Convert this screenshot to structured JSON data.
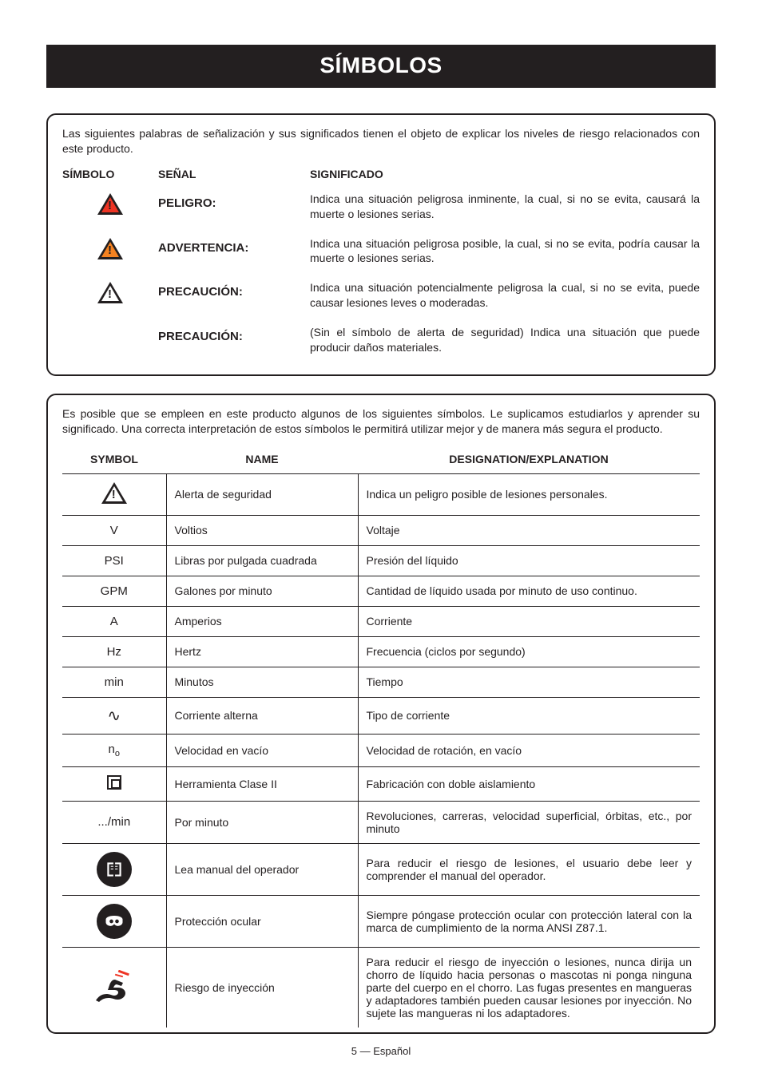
{
  "title": "SÍMBOLOS",
  "signal_box": {
    "intro": "Las siguientes palabras de señalización y sus significados tienen el objeto de explicar los niveles de riesgo relacionados con este producto.",
    "header": {
      "symbol": "SÍMBOLO",
      "signal": "SEÑAL",
      "meaning": "SIGNIFICADO"
    },
    "rows": [
      {
        "icon": "alert-red",
        "signal": "PELIGRO:",
        "meaning": "Indica una situación peligrosa inminente, la cual, si no se evita, causará la muerte o lesiones serias."
      },
      {
        "icon": "alert-orange",
        "signal": "ADVERTENCIA:",
        "meaning": "Indica una situación peligrosa posible, la cual, si no se evita, podría causar la muerte o lesiones serias."
      },
      {
        "icon": "alert-outline",
        "signal": "PRECAUCIÓN:",
        "meaning": "Indica una situación potencialmente peligrosa la cual, si no se evita, puede causar lesiones leves o moderadas."
      },
      {
        "icon": "",
        "signal": "PRECAUCIÓN:",
        "meaning": "(Sin el símbolo de alerta de seguridad) Indica una situación que puede producir daños materiales."
      }
    ]
  },
  "defs_box": {
    "intro": "Es posible que se empleen en este producto algunos de los siguientes símbolos. Le suplicamos estudiarlos y aprender su significado. Una correcta interpretación de estos símbolos le permitirá utilizar mejor y de manera más segura el producto.",
    "header": {
      "symbol": "SYMBOL",
      "name": "NAME",
      "expl": "DESIGNATION/EXPLANATION"
    },
    "rows": [
      {
        "sym_type": "alert",
        "sym_text": "",
        "name": "Alerta de seguridad",
        "expl": "Indica un peligro posible de lesiones personales."
      },
      {
        "sym_type": "text",
        "sym_text": "V",
        "name": "Voltios",
        "expl": "Voltaje"
      },
      {
        "sym_type": "text",
        "sym_text": "PSI",
        "name": "Libras por pulgada cuadrada",
        "expl": "Presión del líquido"
      },
      {
        "sym_type": "text",
        "sym_text": "GPM",
        "name": "Galones por minuto",
        "expl": "Cantidad de líquido usada por minuto de uso continuo."
      },
      {
        "sym_type": "text",
        "sym_text": "A",
        "name": "Amperios",
        "expl": "Corriente"
      },
      {
        "sym_type": "text",
        "sym_text": "Hz",
        "name": "Hertz",
        "expl": "Frecuencia (ciclos por segundo)"
      },
      {
        "sym_type": "text",
        "sym_text": "min",
        "name": "Minutos",
        "expl": "Tiempo"
      },
      {
        "sym_type": "sine",
        "sym_text": "∿",
        "name": "Corriente alterna",
        "expl": "Tipo de corriente"
      },
      {
        "sym_type": "no",
        "sym_text": "n",
        "name": "Velocidad en vacío",
        "expl": "Velocidad de rotación, en vacío"
      },
      {
        "sym_type": "class2",
        "sym_text": "",
        "name": "Herramienta Clase II",
        "expl": "Fabricación con doble aislamiento"
      },
      {
        "sym_type": "text",
        "sym_text": ".../min",
        "name": "Por minuto",
        "expl": "Revoluciones, carreras, velocidad superficial, órbitas, etc., por minuto"
      },
      {
        "sym_type": "manual",
        "sym_text": "",
        "name": "Lea manual del operador",
        "expl": "Para reducir el riesgo de lesiones, el usuario debe leer y comprender el manual del operador."
      },
      {
        "sym_type": "eye",
        "sym_text": "",
        "name": "Protección ocular",
        "expl": "Siempre póngase protección ocular con protección lateral con la marca de cumplimiento de la norma ANSI Z87.1."
      },
      {
        "sym_type": "inject",
        "sym_text": "",
        "name": "Riesgo de inyección",
        "expl": "Para reducir el riesgo de inyección o lesiones, nunca dirija un chorro de líquido hacia personas o mascotas ni ponga ninguna parte del cuerpo en el chorro. Las fugas presentes en mangueras y adaptadores también pueden causar lesiones por inyección. No sujete las mangueras ni los adaptadores."
      }
    ]
  },
  "footer": "5 — Español",
  "colors": {
    "text": "#231f20",
    "danger": "#ee3424",
    "warning": "#f58220",
    "bg": "#ffffff"
  }
}
